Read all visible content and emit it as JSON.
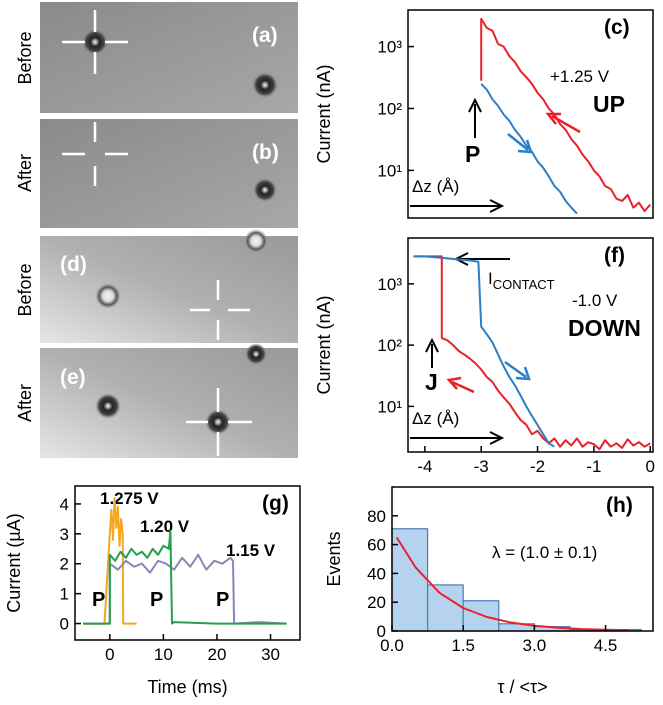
{
  "images": [
    {
      "label": "(a)",
      "side_label": "Before"
    },
    {
      "label": "(b)",
      "side_label": "After"
    },
    {
      "label": "(d)",
      "side_label": "Before"
    },
    {
      "label": "(e)",
      "side_label": "After"
    }
  ],
  "chart_data": [
    {
      "type": "line",
      "log_y": true,
      "ylabel": "Current (nA)",
      "xlim": [
        -4.3,
        0.05
      ],
      "ylim": [
        1.7,
        3900
      ],
      "yticks": [
        {
          "value": 10,
          "label": "10¹"
        },
        {
          "value": 100,
          "label": "10²"
        },
        {
          "value": 1000,
          "label": "10³"
        }
      ],
      "panel": "(c)",
      "voltage": "+1.25 V",
      "direction": "UP",
      "point": "P",
      "dz": "Δz (Å)",
      "series": [
        {
          "color": "#e8212a",
          "x": [
            -3.0,
            -3.0,
            -2.9,
            -2.8,
            -2.7,
            -2.6,
            -2.5,
            -2.4,
            -2.3,
            -2.2,
            -2.1,
            -2.0,
            -1.9,
            -1.8,
            -1.7,
            -1.6,
            -1.5,
            -1.4,
            -1.3,
            -1.2,
            -1.1,
            -1.0,
            -0.9,
            -0.8,
            -0.7,
            -0.6,
            -0.5,
            -0.4,
            -0.3,
            -0.2,
            -0.1,
            0.0
          ],
          "values": [
            280,
            2800,
            2000,
            1800,
            1100,
            1000,
            700,
            560,
            400,
            320,
            250,
            180,
            140,
            100,
            80,
            56,
            45,
            32,
            25,
            18,
            14,
            10,
            8,
            5.6,
            5,
            3.5,
            3.2,
            4,
            2.5,
            3,
            2.2,
            2.8
          ]
        },
        {
          "color": "#2a7fc9",
          "x": [
            -3.0,
            -2.9,
            -2.8,
            -2.7,
            -2.6,
            -2.5,
            -2.4,
            -2.3,
            -2.2,
            -2.1,
            -2.0,
            -1.9,
            -1.8,
            -1.7,
            -1.6,
            -1.5,
            -1.4,
            -1.3
          ],
          "values": [
            250,
            200,
            140,
            110,
            80,
            63,
            45,
            35,
            25,
            20,
            14,
            11,
            8,
            5.6,
            4.5,
            3.2,
            2.5,
            2
          ]
        }
      ]
    },
    {
      "type": "line",
      "log_y": true,
      "ylabel": "Current (nA)",
      "xlim": [
        -4.3,
        0.05
      ],
      "ylim": [
        1.8,
        5600
      ],
      "xticks": [
        -4,
        -3,
        -2,
        -1,
        0
      ],
      "yticks": [
        {
          "value": 10,
          "label": "10¹"
        },
        {
          "value": 100,
          "label": "10²"
        },
        {
          "value": 1000,
          "label": "10³"
        }
      ],
      "panel": "(f)",
      "voltage": "-1.0 V",
      "direction": "DOWN",
      "point": "J",
      "dz": "Δz (Å)",
      "contact": {
        "main": "I",
        "sub": "CONTACT"
      },
      "series": [
        {
          "color": "#e8212a",
          "x": [
            -4.2,
            -4.1,
            -4.0,
            -3.9,
            -3.8,
            -3.7,
            -3.7,
            -3.6,
            -3.5,
            -3.4,
            -3.3,
            -3.2,
            -3.1,
            -3.0,
            -2.9,
            -2.8,
            -2.7,
            -2.6,
            -2.5,
            -2.4,
            -2.3,
            -2.2,
            -2.1,
            -2.0,
            -1.9,
            -1.8,
            -1.7,
            -1.6,
            -1.5,
            -1.4,
            -1.3,
            -1.2,
            -1.1,
            -1.0,
            -0.9,
            -0.8,
            -0.7,
            -0.6,
            -0.5,
            -0.4,
            -0.3,
            -0.2,
            -0.1,
            0.0
          ],
          "values": [
            2800,
            2800,
            2800,
            2800,
            2800,
            2800,
            130,
            120,
            100,
            80,
            70,
            60,
            50,
            40,
            30,
            25,
            18,
            14,
            11,
            8,
            6,
            5,
            3.5,
            4,
            3,
            2.5,
            3,
            2.2,
            2.8,
            2.3,
            3,
            2.2,
            2.6,
            2.4,
            2,
            2.8,
            2.2,
            2.5,
            2.1,
            2.9,
            2.3,
            2.6,
            2.2,
            2.5
          ]
        },
        {
          "color": "#2a7fc9",
          "x": [
            -4.2,
            -4.0,
            -3.8,
            -3.6,
            -3.4,
            -3.2,
            -3.05,
            -3.0,
            -2.9,
            -2.8,
            -2.7,
            -2.6,
            -2.5,
            -2.4,
            -2.3,
            -2.2,
            -2.1,
            -2.0,
            -1.9,
            -1.8,
            -1.7
          ],
          "values": [
            2800,
            2800,
            2700,
            2600,
            2500,
            2400,
            2300,
            200,
            150,
            110,
            70,
            45,
            30,
            22,
            15,
            10,
            7,
            5,
            3.5,
            2.5,
            2.2
          ]
        }
      ]
    },
    {
      "type": "line",
      "xlabel": "Time (ms)",
      "ylabel": "Current (µA)",
      "xlim": [
        -6.5,
        35.5
      ],
      "ylim": [
        -0.55,
        4.6
      ],
      "xticks": [
        0,
        10,
        20,
        30
      ],
      "yticks": [
        0,
        1,
        2,
        3,
        4
      ],
      "panel": "(g)",
      "p_labels": [
        "P",
        "P",
        "P"
      ],
      "series": [
        {
          "name": "1.275 V",
          "color": "#f5a623",
          "x": [
            -5,
            -1,
            0,
            0.3,
            0.6,
            0.9,
            1.2,
            1.5,
            1.8,
            2.1,
            2.4,
            2.5,
            3,
            5
          ],
          "values": [
            0,
            0,
            3,
            3.8,
            2.8,
            4.2,
            3.2,
            3.9,
            2.6,
            3.5,
            3.0,
            0,
            0,
            0
          ]
        },
        {
          "name": "1.15 V",
          "color": "#8a86b8",
          "x": [
            -5,
            0,
            0,
            1.5,
            3,
            4.5,
            6,
            7.5,
            9,
            10.5,
            12,
            13.5,
            15,
            16.5,
            18,
            19.5,
            21,
            22.5,
            23,
            23.2,
            28,
            33
          ],
          "values": [
            0,
            0,
            2.0,
            1.8,
            2.1,
            1.9,
            2.0,
            1.7,
            2.1,
            2.0,
            1.8,
            2.2,
            1.9,
            2.3,
            1.8,
            2.1,
            2.0,
            2.2,
            2.1,
            0,
            0.05,
            0
          ]
        },
        {
          "name": "1.20 V",
          "color": "#22a04b",
          "x": [
            -5,
            0,
            0,
            1,
            2,
            3,
            4,
            5,
            6,
            7,
            8,
            9,
            10,
            11,
            11.3,
            11.6,
            12,
            20,
            33
          ],
          "values": [
            0,
            0,
            2.3,
            2.1,
            2.4,
            2.2,
            2.5,
            2.3,
            2.4,
            2.2,
            2.5,
            2.3,
            2.6,
            2.5,
            3.1,
            0,
            0.05,
            0,
            0
          ]
        }
      ]
    },
    {
      "type": "histogram",
      "xlabel": "τ / <τ>",
      "ylabel": "Events",
      "xlim": [
        0,
        5.5
      ],
      "ylim": [
        0,
        100
      ],
      "xticks": [
        {
          "value": 0,
          "label": "0.0"
        },
        1.5,
        {
          "value": 3,
          "label": "3.0"
        },
        4.5
      ],
      "yticks": [
        0,
        20,
        40,
        60,
        80
      ],
      "panel": "(h)",
      "fit_label": "λ = (1.0 ± 0.1)",
      "bins": [
        0,
        0.75,
        1.5,
        2.25,
        3.0,
        3.75,
        4.5,
        5.25
      ],
      "values": [
        71,
        32,
        21,
        5,
        3,
        1,
        1
      ],
      "color": "#b5d3ee",
      "edge_color": "#4a7db5",
      "fit": {
        "color": "#e8212a",
        "x": [
          0.1,
          0.5,
          1.0,
          1.5,
          2.0,
          2.5,
          3.0,
          3.5,
          4.0,
          4.5,
          5.0
        ],
        "values": [
          65,
          44,
          26.5,
          16,
          9.7,
          5.9,
          3.6,
          2.2,
          1.3,
          0.8,
          0.5
        ]
      }
    }
  ]
}
